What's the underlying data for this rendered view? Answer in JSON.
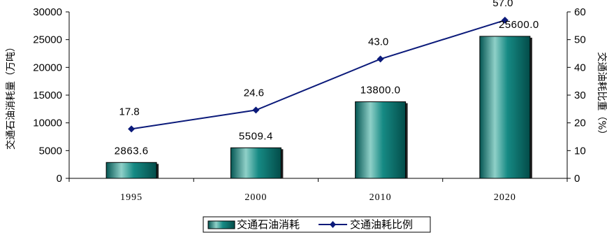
{
  "chart_data": {
    "type": "bar",
    "categories": [
      "1995",
      "2000",
      "2010",
      "2020"
    ],
    "series": [
      {
        "name": "交通石油消耗",
        "type": "bar",
        "axis": "left",
        "values": [
          2863.6,
          5509.4,
          13800.0,
          25600.0
        ],
        "labels": [
          "2863.6",
          "5509.4",
          "13800.0",
          "25600.0"
        ]
      },
      {
        "name": "交通油耗比例",
        "type": "line",
        "axis": "right",
        "values": [
          17.8,
          24.6,
          43.0,
          57.0
        ],
        "labels": [
          "17.8",
          "24.6",
          "43.0",
          "57.0"
        ]
      }
    ],
    "ylabel": "交通石油消耗量（万吨）",
    "y2label": "交通油耗比重（%）",
    "ylim": [
      0,
      30000
    ],
    "y2lim": [
      0,
      60
    ],
    "yticks": [
      0,
      5000,
      10000,
      15000,
      20000,
      25000,
      30000
    ],
    "y2ticks": [
      0,
      10,
      20,
      30,
      40,
      50,
      60
    ],
    "grid": false,
    "legend_position": "bottom",
    "colors": {
      "bar_fill": "#0f6e6b",
      "bar_highlight": "#8fd0c8",
      "bar_dark": "#034c49",
      "line": "#0b1a7a"
    }
  }
}
